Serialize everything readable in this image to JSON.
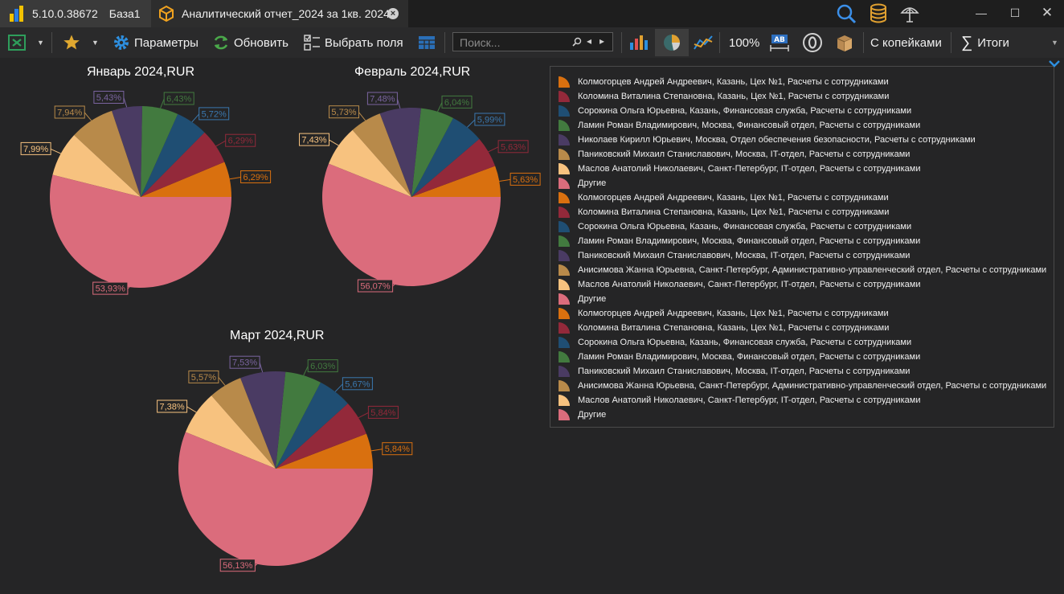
{
  "titlebar": {
    "app_version": "5.10.0.38672",
    "db_name": "База1",
    "doc_title": "Аналитический отчет_2024 за 1кв. 2024"
  },
  "toolbar": {
    "params_label": "Параметры",
    "refresh_label": "Обновить",
    "select_fields_label": "Выбрать поля",
    "search_placeholder": "Поиск...",
    "zoom": "100%",
    "kopecks_label": "С копейками",
    "totals_label": "Итоги"
  },
  "colors": {
    "orange": "#d9700f",
    "crimson": "#93293a",
    "navy": "#1f4e73",
    "green": "#427a3f",
    "purple": "#4a3b63",
    "tan": "#b88a4a",
    "peach": "#f7c27f",
    "pink": "#db6c7c"
  },
  "chart_data": [
    {
      "type": "pie",
      "title": "Январь 2024,RUR",
      "series": [
        {
          "name": "Колмогорцев Андрей Андреевич, Казань, Цех №1, Расчеты с сотрудниками",
          "value": 6.29,
          "label": "6,29%",
          "color": "#d9700f"
        },
        {
          "name": "Коломина Виталина Степановна, Казань, Цех №1, Расчеты с сотрудниками",
          "value": 6.29,
          "label": "6,29%",
          "color": "#93293a"
        },
        {
          "name": "Сорокина Ольга Юрьевна, Казань, Финансовая служба, Расчеты с сотрудниками",
          "value": 5.72,
          "label": "5,72%",
          "color": "#1f4e73"
        },
        {
          "name": "Ламин Роман Владимирович, Москва, Финансовый отдел, Расчеты с сотрудниками",
          "value": 6.43,
          "label": "6,43%",
          "color": "#427a3f"
        },
        {
          "name": "Николаев Кирилл Юрьевич, Москва, Отдел обеспечения безопасности, Расчеты с сотрудниками",
          "value": 5.43,
          "label": "5,43%",
          "color": "#4a3b63"
        },
        {
          "name": "Паниковский Михаил Станиславович, Москва, IT-отдел, Расчеты с сотрудниками",
          "value": 7.94,
          "label": "7,94%",
          "color": "#b88a4a"
        },
        {
          "name": "Маслов Анатолий Николаевич, Санкт-Петербург, IT-отдел, Расчеты с сотрудниками",
          "value": 7.99,
          "label": "7,99%",
          "color": "#f7c27f"
        },
        {
          "name": "Другие",
          "value": 53.93,
          "label": "53,93%",
          "color": "#db6c7c"
        }
      ]
    },
    {
      "type": "pie",
      "title": "Февраль 2024,RUR",
      "series": [
        {
          "name": "Колмогорцев Андрей Андреевич, Казань, Цех №1, Расчеты с сотрудниками",
          "value": 5.63,
          "label": "5,63%",
          "color": "#d9700f"
        },
        {
          "name": "Коломина Виталина Степановна, Казань, Цех №1, Расчеты с сотрудниками",
          "value": 5.63,
          "label": "5,63%",
          "color": "#93293a"
        },
        {
          "name": "Сорокина Ольга Юрьевна, Казань, Финансовая служба, Расчеты с сотрудниками",
          "value": 5.99,
          "label": "5,99%",
          "color": "#1f4e73"
        },
        {
          "name": "Ламин Роман Владимирович, Москва, Финансовый отдел, Расчеты с сотрудниками",
          "value": 6.04,
          "label": "6,04%",
          "color": "#427a3f"
        },
        {
          "name": "Паниковский Михаил Станиславович, Москва, IT-отдел, Расчеты с сотрудниками",
          "value": 7.48,
          "label": "7,48%",
          "color": "#4a3b63"
        },
        {
          "name": "Анисимова Жанна Юрьевна, Санкт-Петербург, Административно-управленческий отдел, Расчеты с сотрудниками",
          "value": 5.73,
          "label": "5,73%",
          "color": "#b88a4a"
        },
        {
          "name": "Маслов Анатолий Николаевич, Санкт-Петербург, IT-отдел, Расчеты с сотрудниками",
          "value": 7.43,
          "label": "7,43%",
          "color": "#f7c27f"
        },
        {
          "name": "Другие",
          "value": 56.07,
          "label": "56,07%",
          "color": "#db6c7c"
        }
      ]
    },
    {
      "type": "pie",
      "title": "Март 2024,RUR",
      "series": [
        {
          "name": "Колмогорцев Андрей Андреевич, Казань, Цех №1, Расчеты с сотрудниками",
          "value": 5.84,
          "label": "5,84%",
          "color": "#d9700f"
        },
        {
          "name": "Коломина Виталина Степановна, Казань, Цех №1, Расчеты с сотрудниками",
          "value": 5.84,
          "label": "5,84%",
          "color": "#93293a"
        },
        {
          "name": "Сорокина Ольга Юрьевна, Казань, Финансовая служба, Расчеты с сотрудниками",
          "value": 5.67,
          "label": "5,67%",
          "color": "#1f4e73"
        },
        {
          "name": "Ламин Роман Владимирович, Москва, Финансовый отдел, Расчеты с сотрудниками",
          "value": 6.03,
          "label": "6,03%",
          "color": "#427a3f"
        },
        {
          "name": "Паниковский Михаил Станиславович, Москва, IT-отдел, Расчеты с сотрудниками",
          "value": 7.53,
          "label": "7,53%",
          "color": "#4a3b63"
        },
        {
          "name": "Анисимова Жанна Юрьевна, Санкт-Петербург, Административно-управленческий отдел, Расчеты с сотрудниками",
          "value": 5.57,
          "label": "5,57%",
          "color": "#b88a4a"
        },
        {
          "name": "Маслов Анатолий Николаевич, Санкт-Петербург, IT-отдел, Расчеты с сотрудниками",
          "value": 7.38,
          "label": "7,38%",
          "color": "#f7c27f"
        },
        {
          "name": "Другие",
          "value": 56.13,
          "label": "56,13%",
          "color": "#db6c7c"
        }
      ]
    }
  ]
}
